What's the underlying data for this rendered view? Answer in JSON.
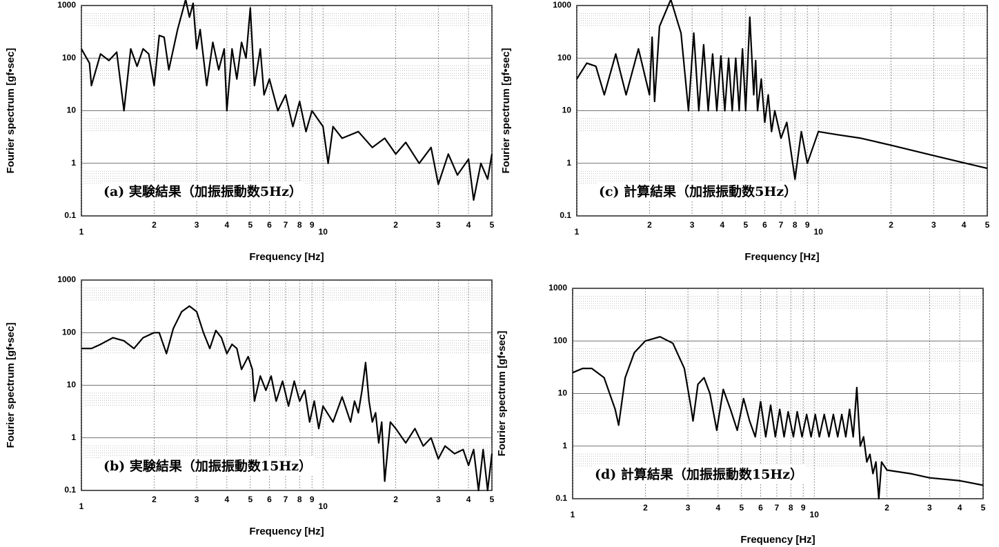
{
  "chart_data": [
    {
      "type": "line",
      "title": "(a) 実験結果（加振振動数5Hz）",
      "x_label": "Frequency [Hz]",
      "y_label": "Fourier spectrum [gf•sec]",
      "xscale": "log",
      "yscale": "log",
      "grid": true,
      "color": "#000000",
      "xlim": [
        1,
        50
      ],
      "ylim": [
        0.1,
        1000
      ],
      "xticks": [
        1,
        2,
        3,
        4,
        5,
        6,
        7,
        8,
        9,
        10,
        {
          "value": 20,
          "label": "2"
        },
        {
          "value": 30,
          "label": "3"
        },
        {
          "value": 40,
          "label": "4"
        },
        {
          "value": 50,
          "label": "5"
        }
      ],
      "yticks": [
        0.1,
        1,
        10,
        100,
        1000
      ],
      "x": [
        1,
        1.08,
        1.1,
        1.2,
        1.3,
        1.4,
        1.5,
        1.6,
        1.7,
        1.8,
        1.9,
        2,
        2.1,
        2.2,
        2.3,
        2.5,
        2.7,
        2.8,
        2.9,
        3,
        3.1,
        3.3,
        3.5,
        3.7,
        3.9,
        4,
        4.2,
        4.4,
        4.6,
        4.8,
        5,
        5.2,
        5.5,
        5.7,
        6,
        6.5,
        7,
        7.5,
        8,
        8.5,
        9,
        10,
        10.5,
        11,
        12,
        14,
        16,
        18,
        20,
        22,
        25,
        28,
        30,
        33,
        36,
        40,
        42,
        45,
        48,
        50
      ],
      "values": [
        150,
        80,
        30,
        120,
        90,
        130,
        10,
        150,
        70,
        150,
        120,
        30,
        270,
        250,
        60,
        350,
        1300,
        600,
        1100,
        150,
        350,
        30,
        200,
        60,
        150,
        10,
        150,
        40,
        200,
        100,
        900,
        30,
        150,
        20,
        40,
        10,
        20,
        5,
        15,
        4,
        10,
        5,
        1,
        5,
        3,
        4,
        2,
        3,
        1.5,
        2.5,
        1,
        2,
        0.4,
        1.5,
        0.6,
        1.2,
        0.2,
        1,
        0.5,
        1.5
      ]
    },
    {
      "type": "line",
      "title": "(c) 計算結果（加振振動数5Hz）",
      "x_label": "Frequency [Hz]",
      "y_label": "Fourier spectrum [gf•sec]",
      "xscale": "log",
      "yscale": "log",
      "grid": true,
      "color": "#000000",
      "xlim": [
        1,
        50
      ],
      "ylim": [
        0.1,
        1000
      ],
      "xticks": [
        1,
        2,
        3,
        4,
        5,
        6,
        7,
        8,
        9,
        10,
        {
          "value": 20,
          "label": "2"
        },
        {
          "value": 30,
          "label": "3"
        },
        {
          "value": 40,
          "label": "4"
        },
        {
          "value": 50,
          "label": "5"
        }
      ],
      "yticks": [
        0.1,
        1,
        10,
        100,
        1000
      ],
      "x": [
        1,
        1.1,
        1.2,
        1.3,
        1.45,
        1.6,
        1.8,
        2,
        2.05,
        2.1,
        2.2,
        2.45,
        2.7,
        2.9,
        3.05,
        3.2,
        3.35,
        3.5,
        3.65,
        3.8,
        3.95,
        4.1,
        4.25,
        4.4,
        4.55,
        4.7,
        4.85,
        5,
        5.2,
        5.4,
        5.5,
        5.6,
        5.8,
        6,
        6.2,
        6.4,
        6.6,
        7,
        7.4,
        8,
        8.5,
        9,
        10,
        12,
        15,
        20,
        30,
        50
      ],
      "values": [
        40,
        80,
        70,
        20,
        120,
        20,
        150,
        20,
        250,
        15,
        400,
        1300,
        300,
        10,
        300,
        10,
        180,
        10,
        120,
        10,
        110,
        10,
        100,
        10,
        100,
        10,
        150,
        10,
        600,
        20,
        90,
        10,
        40,
        6,
        20,
        4,
        10,
        3,
        6,
        0.5,
        4,
        1,
        4,
        3.5,
        3,
        2.2,
        1.4,
        0.8
      ]
    },
    {
      "type": "line",
      "title": "(b) 実験結果（加振振動数15Hz）",
      "x_label": "Frequency [Hz]",
      "y_label": "Fourier spectrum [gf•sec]",
      "xscale": "log",
      "yscale": "log",
      "grid": true,
      "color": "#000000",
      "xlim": [
        1,
        50
      ],
      "ylim": [
        0.1,
        1000
      ],
      "xticks": [
        1,
        2,
        3,
        4,
        5,
        6,
        7,
        8,
        9,
        10,
        {
          "value": 20,
          "label": "2"
        },
        {
          "value": 30,
          "label": "3"
        },
        {
          "value": 40,
          "label": "4"
        },
        {
          "value": 50,
          "label": "5"
        }
      ],
      "yticks": [
        0.1,
        1,
        10,
        100,
        1000
      ],
      "x": [
        1,
        1.1,
        1.2,
        1.35,
        1.5,
        1.65,
        1.8,
        2,
        2.1,
        2.25,
        2.4,
        2.6,
        2.8,
        3,
        3.2,
        3.4,
        3.6,
        3.8,
        4,
        4.2,
        4.4,
        4.6,
        4.9,
        5.1,
        5.2,
        5.5,
        5.8,
        6.1,
        6.4,
        6.8,
        7.2,
        7.6,
        8,
        8.4,
        8.8,
        9.2,
        9.6,
        10,
        11,
        12,
        13,
        13.5,
        14,
        14.5,
        15,
        15.5,
        16,
        16.5,
        17,
        17.5,
        18,
        19,
        20,
        22,
        24,
        26,
        28,
        30,
        32,
        35,
        38,
        40,
        42,
        44,
        46,
        48,
        50
      ],
      "values": [
        50,
        50,
        60,
        80,
        70,
        50,
        80,
        100,
        100,
        40,
        120,
        250,
        320,
        250,
        100,
        50,
        110,
        80,
        40,
        60,
        50,
        20,
        35,
        20,
        5,
        15,
        8,
        15,
        5,
        12,
        4,
        12,
        5,
        8,
        2,
        5,
        1.5,
        4,
        2,
        6,
        2,
        5,
        3,
        8,
        27,
        5,
        2,
        3,
        0.8,
        2,
        0.15,
        2,
        1.5,
        0.8,
        1.5,
        0.7,
        1,
        0.4,
        0.7,
        0.5,
        0.6,
        0.3,
        0.6,
        0.1,
        0.6,
        0.1,
        0.5
      ]
    },
    {
      "type": "line",
      "title": "(d) 計算結果（加振振動数15Hz）",
      "x_label": "Frequency [Hz]",
      "y_label": "Fourier spectrum [gf•sec]",
      "xscale": "log",
      "yscale": "log",
      "grid": true,
      "color": "#000000",
      "xlim": [
        1,
        50
      ],
      "ylim": [
        0.1,
        1000
      ],
      "xticks": [
        1,
        2,
        3,
        4,
        5,
        6,
        7,
        8,
        9,
        10,
        {
          "value": 20,
          "label": "2"
        },
        {
          "value": 30,
          "label": "3"
        },
        {
          "value": 40,
          "label": "4"
        },
        {
          "value": 50,
          "label": "5"
        }
      ],
      "yticks": [
        0.1,
        1,
        10,
        100,
        1000
      ],
      "x": [
        1,
        1.1,
        1.2,
        1.35,
        1.5,
        1.55,
        1.65,
        1.8,
        2,
        2.3,
        2.6,
        2.9,
        3.1,
        3.15,
        3.3,
        3.5,
        3.7,
        3.95,
        4.2,
        4.5,
        4.8,
        5.1,
        5.4,
        5.7,
        6,
        6.3,
        6.6,
        6.9,
        7.2,
        7.5,
        7.8,
        8.2,
        8.5,
        8.9,
        9.3,
        9.7,
        10.1,
        10.5,
        11,
        11.5,
        12,
        12.5,
        13,
        13.5,
        14,
        14.5,
        15,
        15.5,
        16,
        16.5,
        17,
        17.5,
        18,
        18.5,
        19,
        20,
        25,
        30,
        40,
        50
      ],
      "values": [
        25,
        30,
        30,
        20,
        5,
        2.5,
        20,
        60,
        100,
        120,
        90,
        30,
        5,
        3,
        15,
        20,
        10,
        2,
        12,
        5,
        2,
        8,
        3,
        1.5,
        7,
        1.5,
        6,
        1.5,
        5,
        1.5,
        4.5,
        1.5,
        4.5,
        1.5,
        4,
        1.5,
        4,
        1.5,
        4,
        1.5,
        4,
        1.5,
        4,
        1.5,
        5,
        1.5,
        13,
        1,
        1.5,
        0.5,
        0.7,
        0.3,
        0.5,
        0.1,
        0.5,
        0.35,
        0.3,
        0.25,
        0.22,
        0.18
      ]
    }
  ]
}
